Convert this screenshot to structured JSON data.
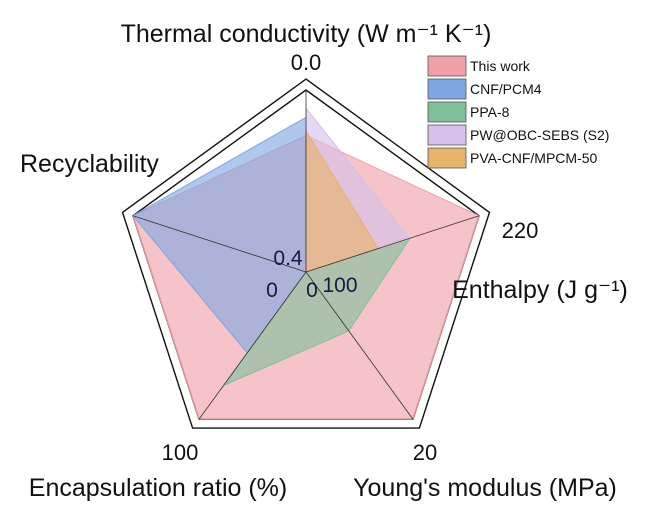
{
  "chart_data": {
    "type": "radar",
    "axes": [
      {
        "label": "Thermal conductivity (W m⁻¹ K⁻¹)",
        "range": [
          0.4,
          0.0
        ],
        "outer_tick": "0.0",
        "inner_tick": "0.4"
      },
      {
        "label": "Enthalpy (J g⁻¹)",
        "range": [
          100,
          220
        ],
        "outer_tick": "220",
        "inner_tick": "100"
      },
      {
        "label": "Young's modulus (MPa)",
        "range": [
          0,
          20
        ],
        "outer_tick": "20",
        "inner_tick": "0"
      },
      {
        "label": "Encapsulation ratio (%)",
        "range": [
          0,
          100
        ],
        "outer_tick": "100",
        "inner_tick": "0"
      },
      {
        "label": "Recyclability",
        "range": [
          0,
          1
        ],
        "outer_tick": "",
        "inner_tick": ""
      }
    ],
    "series": [
      {
        "name": "This work",
        "color": "#f0a0a6",
        "values": [
          0.1,
          220,
          20,
          100,
          1
        ]
      },
      {
        "name": "CNF/PCM4",
        "color": "#7fa6e2",
        "values": [
          0.06,
          100,
          0,
          55,
          1
        ]
      },
      {
        "name": "PPA-8",
        "color": "#7fbf9c",
        "values": [
          0.4,
          172,
          8,
          77,
          0
        ]
      },
      {
        "name": "PW@OBC-SEBS (S2)",
        "color": "#d4c0ea",
        "values": [
          0.04,
          172,
          0,
          0,
          0
        ]
      },
      {
        "name": "PVA-CNF/MPCM-50",
        "color": "#e6b36a",
        "values": [
          0.09,
          150,
          0,
          0,
          0
        ]
      }
    ],
    "legend_position": "top-right",
    "grid": false
  }
}
